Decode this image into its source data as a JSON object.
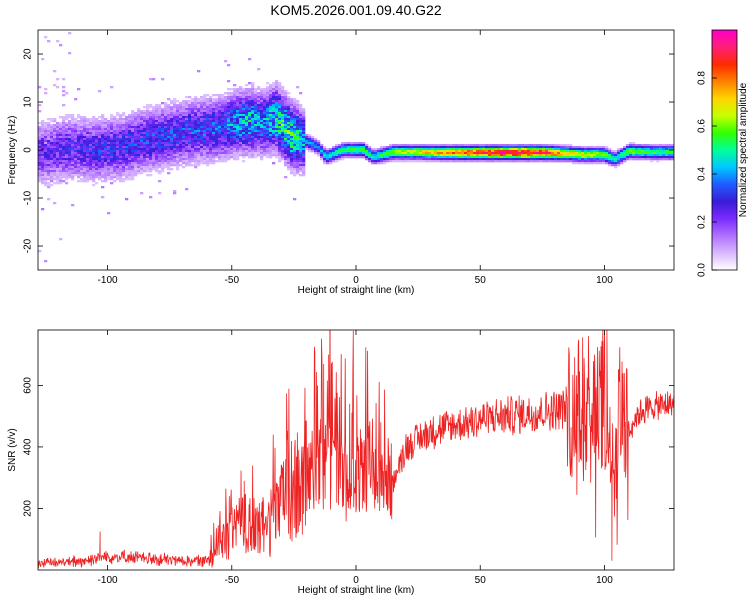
{
  "figure": {
    "title": "KOM5.2026.001.09.40.G22"
  },
  "colors": {
    "snr_line": "#ee2222",
    "frame": "#000000",
    "colormap": [
      "#ffffff",
      "#d9b8ff",
      "#b070ff",
      "#7a2bff",
      "#3a1cd6",
      "#1e5cff",
      "#00c8ff",
      "#00ff9a",
      "#33ff00",
      "#c8ff00",
      "#ffd400",
      "#ff8000",
      "#ff2a00",
      "#ff1e78",
      "#ff00c8"
    ]
  },
  "chart_data": [
    {
      "id": "spectrogram",
      "type": "heatmap",
      "xlabel": "Height of straight line (km)",
      "ylabel": "Frequency (Hz)",
      "xlim": [
        -128,
        128
      ],
      "ylim": [
        -25,
        25
      ],
      "xticks": [
        -100,
        -50,
        0,
        50,
        100
      ],
      "yticks": [
        -20,
        -10,
        0,
        10,
        20
      ],
      "colorbar": {
        "label": "Normalized spectral amplitude",
        "range": [
          0,
          1
        ],
        "ticks": [
          "0.0",
          "0.2",
          "0.4",
          "0.6",
          "0.8"
        ]
      },
      "ridge": [
        {
          "x": -125,
          "freq": -0.5,
          "amp": 0.28
        },
        {
          "x": -115,
          "freq": 0.5,
          "amp": 0.3
        },
        {
          "x": -105,
          "freq": 0.0,
          "amp": 0.32
        },
        {
          "x": -95,
          "freq": 0.5,
          "amp": 0.33
        },
        {
          "x": -85,
          "freq": 2.0,
          "amp": 0.34
        },
        {
          "x": -75,
          "freq": 3.0,
          "amp": 0.35
        },
        {
          "x": -65,
          "freq": 4.0,
          "amp": 0.36
        },
        {
          "x": -55,
          "freq": 4.5,
          "amp": 0.38
        },
        {
          "x": -48,
          "freq": 5.5,
          "amp": 0.45
        },
        {
          "x": -42,
          "freq": 6.0,
          "amp": 0.5
        },
        {
          "x": -38,
          "freq": 5.5,
          "amp": 0.42
        },
        {
          "x": -32,
          "freq": 6.5,
          "amp": 0.55
        },
        {
          "x": -26,
          "freq": 3.0,
          "amp": 0.6
        },
        {
          "x": -21,
          "freq": 2.0,
          "amp": 0.45
        },
        {
          "x": -15,
          "freq": 0.5,
          "amp": 0.4
        },
        {
          "x": -12,
          "freq": -1.5,
          "amp": 0.5
        },
        {
          "x": -5,
          "freq": 0.0,
          "amp": 0.55
        },
        {
          "x": 3,
          "freq": 0.0,
          "amp": 0.6
        },
        {
          "x": 7,
          "freq": -1.5,
          "amp": 0.5
        },
        {
          "x": 15,
          "freq": -0.5,
          "amp": 0.65
        },
        {
          "x": 25,
          "freq": -0.5,
          "amp": 0.72
        },
        {
          "x": 35,
          "freq": -0.6,
          "amp": 0.8
        },
        {
          "x": 45,
          "freq": -0.6,
          "amp": 0.88
        },
        {
          "x": 55,
          "freq": -0.6,
          "amp": 0.95
        },
        {
          "x": 65,
          "freq": -0.6,
          "amp": 1.0
        },
        {
          "x": 75,
          "freq": -0.6,
          "amp": 0.95
        },
        {
          "x": 85,
          "freq": -0.8,
          "amp": 0.75
        },
        {
          "x": 92,
          "freq": -1.0,
          "amp": 0.7
        },
        {
          "x": 100,
          "freq": -1.0,
          "amp": 0.68
        },
        {
          "x": 104,
          "freq": -2.0,
          "amp": 0.5
        },
        {
          "x": 110,
          "freq": -0.3,
          "amp": 0.62
        },
        {
          "x": 120,
          "freq": -0.5,
          "amp": 0.58
        },
        {
          "x": 128,
          "freq": -0.5,
          "amp": 0.55
        }
      ]
    },
    {
      "id": "snr",
      "type": "line",
      "xlabel": "Height of straight line (km)",
      "ylabel": "SNR (v/v)",
      "xlim": [
        -128,
        128
      ],
      "ylim": [
        0,
        780
      ],
      "xticks": [
        -100,
        -50,
        0,
        50,
        100
      ],
      "yticks": [
        200,
        400,
        600
      ],
      "series": [
        {
          "name": "SNR",
          "x": [
            -128,
            -110,
            -100,
            -90,
            -80,
            -70,
            -60,
            -55,
            -50,
            -45,
            -40,
            -35,
            -30,
            -25,
            -20,
            -15,
            -10,
            -5,
            0,
            5,
            10,
            15,
            20,
            30,
            40,
            50,
            60,
            70,
            80,
            85,
            90,
            95,
            100,
            102,
            104,
            106,
            110,
            115,
            120,
            128
          ],
          "y": [
            20,
            30,
            45,
            40,
            35,
            30,
            30,
            90,
            120,
            150,
            130,
            150,
            220,
            250,
            300,
            330,
            360,
            300,
            300,
            350,
            320,
            280,
            400,
            450,
            470,
            490,
            500,
            510,
            520,
            530,
            540,
            520,
            560,
            440,
            300,
            500,
            460,
            520,
            530,
            540
          ],
          "spikes": [
            {
              "x": -103,
              "y": 125
            },
            {
              "x": -51,
              "y": 240
            },
            {
              "x": -45,
              "y": 290
            },
            {
              "x": -23,
              "y": 360
            },
            {
              "x": -13,
              "y": 670
            },
            {
              "x": -11,
              "y": 600
            },
            {
              "x": -9,
              "y": 420
            },
            {
              "x": 10,
              "y": 480
            },
            {
              "x": 88,
              "y": 630
            },
            {
              "x": 96,
              "y": 700
            },
            {
              "x": 100,
              "y": 750
            },
            {
              "x": 101,
              "y": 780
            },
            {
              "x": 103,
              "y": 30
            },
            {
              "x": 104,
              "y": 200
            },
            {
              "x": 108,
              "y": 640
            }
          ]
        }
      ]
    }
  ]
}
